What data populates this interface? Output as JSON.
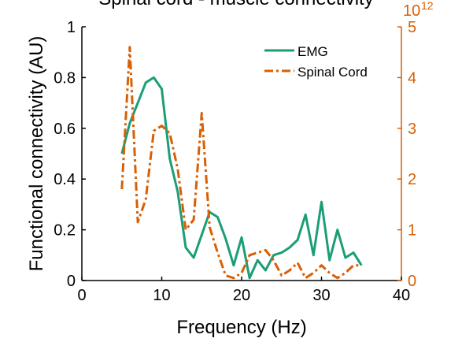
{
  "chart_data": {
    "type": "line",
    "title": "Spinal cord - muscle connectivity",
    "xlabel": "Frequency (Hz)",
    "ylabel": "Functional connectivity (AU)",
    "xlim": [
      0,
      40
    ],
    "ylim": [
      0,
      1
    ],
    "y2lim": [
      0,
      5
    ],
    "y2_exponent_label": "10",
    "y2_exponent_power": "12",
    "x_ticks": [
      "0",
      "10",
      "20",
      "30",
      "40"
    ],
    "y_ticks": [
      "0",
      "0.2",
      "0.4",
      "0.6",
      "0.8",
      "1"
    ],
    "y2_ticks": [
      "0",
      "1",
      "2",
      "3",
      "4",
      "5"
    ],
    "grid": false,
    "legend_position": "top-right",
    "colors": {
      "emg": "#1b9e77",
      "spinal": "#d95f02",
      "axis": "#000000",
      "right_axis": "#d95f02"
    },
    "series": [
      {
        "name": "EMG",
        "axis": "left",
        "style": "solid",
        "x": [
          5,
          6,
          7,
          8,
          9,
          10,
          11,
          12,
          13,
          14,
          15,
          16,
          17,
          18,
          19,
          20,
          21,
          22,
          23,
          24,
          25,
          26,
          27,
          28,
          29,
          30,
          31,
          32,
          33,
          34,
          35
        ],
        "values": [
          0.5,
          0.62,
          0.7,
          0.78,
          0.8,
          0.755,
          0.48,
          0.35,
          0.13,
          0.09,
          0.18,
          0.27,
          0.25,
          0.165,
          0.06,
          0.17,
          0.01,
          0.08,
          0.04,
          0.1,
          0.11,
          0.13,
          0.16,
          0.26,
          0.1,
          0.31,
          0.08,
          0.2,
          0.09,
          0.11,
          0.06
        ]
      },
      {
        "name": "Spinal Cord",
        "axis": "right",
        "style": "dashdot",
        "x": [
          5,
          6,
          7,
          8,
          9,
          10,
          11,
          12,
          13,
          14,
          15,
          16,
          17,
          18,
          19,
          20,
          21,
          22,
          23,
          24,
          25,
          26,
          27,
          28,
          29,
          30,
          31,
          32,
          33,
          34,
          35
        ],
        "values": [
          1.8,
          4.6,
          1.15,
          1.6,
          2.95,
          3.05,
          2.9,
          2.2,
          1.0,
          1.2,
          3.3,
          1.05,
          0.55,
          0.1,
          0.05,
          0.15,
          0.5,
          0.55,
          0.6,
          0.4,
          0.1,
          0.2,
          0.35,
          0.05,
          0.15,
          0.3,
          0.15,
          0.05,
          0.15,
          0.3,
          0.3
        ]
      }
    ]
  }
}
